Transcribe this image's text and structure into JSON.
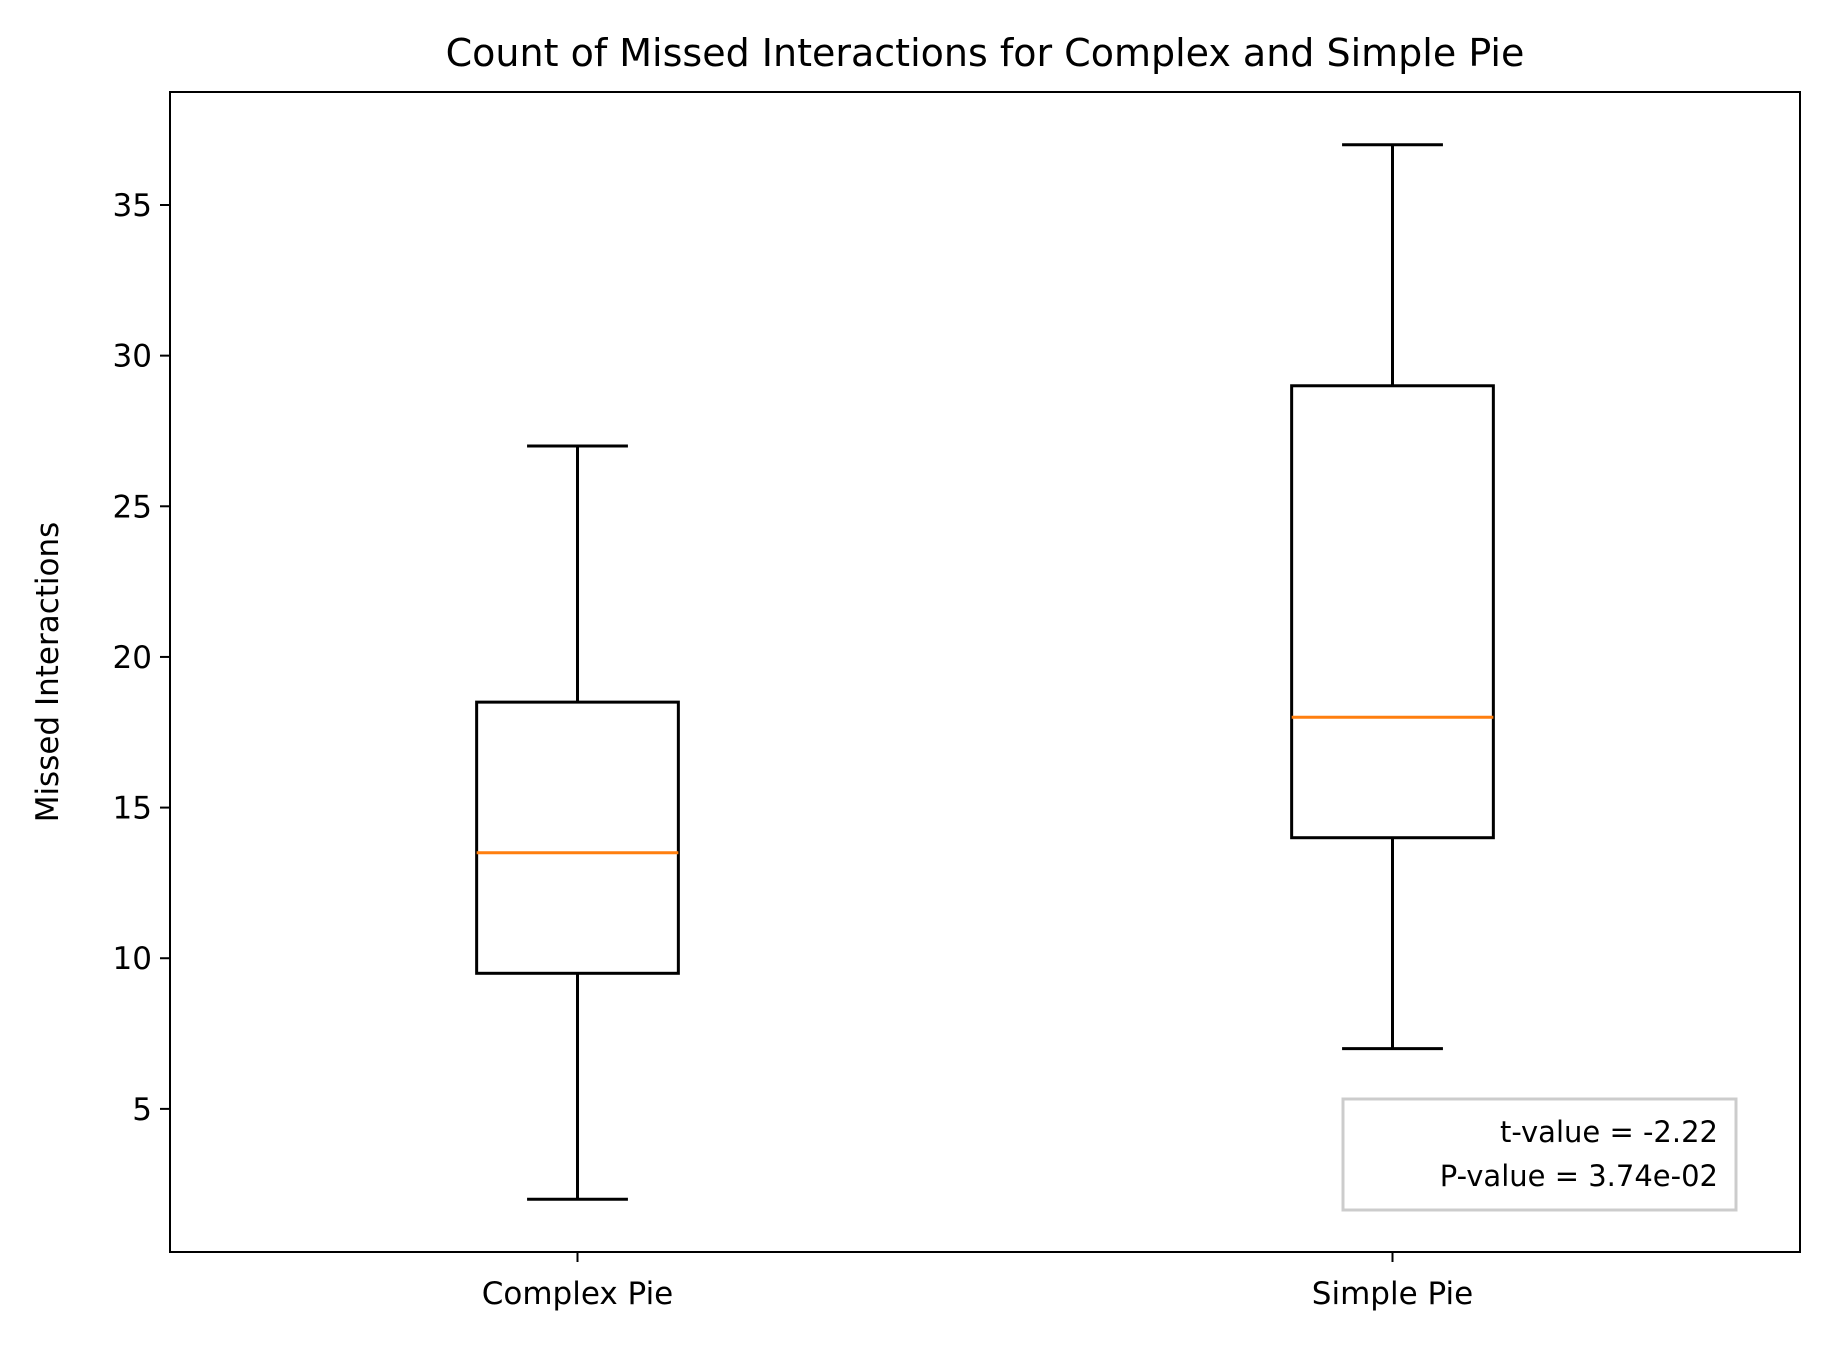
{
  "chart_data": {
    "type": "box",
    "title": "Count of Missed Interactions for Complex and Simple Pie",
    "xlabel": "",
    "ylabel": "Missed Interactions",
    "categories": [
      "Complex Pie",
      "Simple Pie"
    ],
    "boxes": [
      {
        "category": "Complex Pie",
        "whisker_low": 2,
        "q1": 9.5,
        "median": 13.5,
        "q3": 18.5,
        "whisker_high": 27
      },
      {
        "category": "Simple Pie",
        "whisker_low": 7,
        "q1": 14,
        "median": 18,
        "q3": 29,
        "whisker_high": 37
      }
    ],
    "ylim": [
      0.25,
      38.75
    ],
    "yticks": [
      5,
      10,
      15,
      20,
      25,
      30,
      35
    ],
    "grid": false,
    "annotation": {
      "lines": [
        "t-value = -2.22",
        "P-value = 3.74e-02"
      ],
      "placement": "bottom-right"
    },
    "colors": {
      "box": "#000000",
      "median": "#ff7f0e",
      "annotation_border": "#cccccc"
    }
  }
}
